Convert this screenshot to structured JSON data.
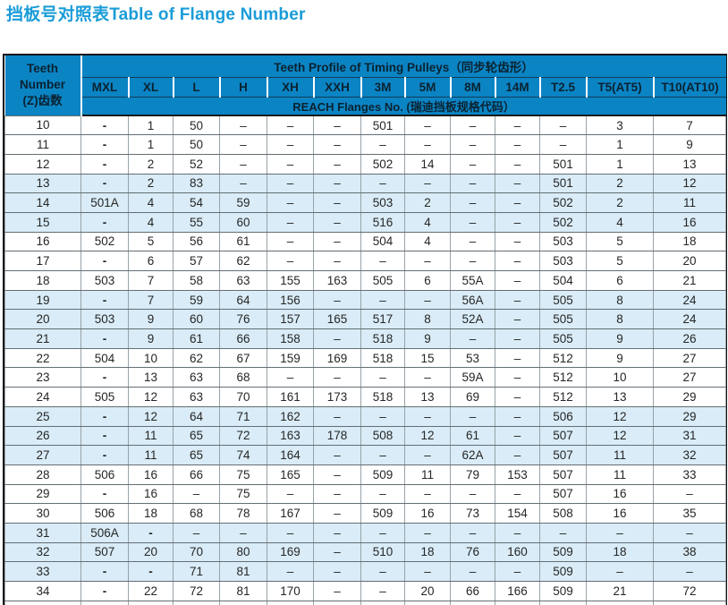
{
  "title": "挡板号对照表Table of Flange Number",
  "colors": {
    "title_accent": "#1a9cd8",
    "header_background": "#0b84c4",
    "row_band": "#d9ecf7"
  },
  "table": {
    "corner_header_lines": [
      "Teeth",
      "Number",
      "(Z)齿数"
    ],
    "group_header": "Teeth Profile of Timing Pulleys（同步轮齿形）",
    "subgroup_header": "REACH Flanges No. (瑞迪挡板规格代码）",
    "columns": [
      "MXL",
      "XL",
      "L",
      "H",
      "XH",
      "XXH",
      "3M",
      "5M",
      "8M",
      "14M",
      "T2.5",
      "T5(AT5)",
      "T10(AT10)"
    ],
    "rows": [
      {
        "teeth": "10",
        "values": [
          "-",
          "1",
          "50",
          "–",
          "–",
          "–",
          "501",
          "–",
          "–",
          "–",
          "–",
          "3",
          "7"
        ]
      },
      {
        "teeth": "11",
        "values": [
          "-",
          "1",
          "50",
          "–",
          "–",
          "–",
          "–",
          "–",
          "–",
          "–",
          "–",
          "1",
          "9"
        ]
      },
      {
        "teeth": "12",
        "values": [
          "-",
          "2",
          "52",
          "–",
          "–",
          "–",
          "502",
          "14",
          "–",
          "–",
          "501",
          "1",
          "13"
        ]
      },
      {
        "teeth": "13",
        "values": [
          "-",
          "2",
          "83",
          "–",
          "–",
          "–",
          "–",
          "–",
          "–",
          "–",
          "501",
          "2",
          "12"
        ]
      },
      {
        "teeth": "14",
        "values": [
          "501A",
          "4",
          "54",
          "59",
          "–",
          "–",
          "503",
          "2",
          "–",
          "–",
          "502",
          "2",
          "11"
        ]
      },
      {
        "teeth": "15",
        "values": [
          "-",
          "4",
          "55",
          "60",
          "–",
          "–",
          "516",
          "4",
          "–",
          "–",
          "502",
          "4",
          "16"
        ]
      },
      {
        "teeth": "16",
        "values": [
          "502",
          "5",
          "56",
          "61",
          "–",
          "–",
          "504",
          "4",
          "–",
          "–",
          "503",
          "5",
          "18"
        ]
      },
      {
        "teeth": "17",
        "values": [
          "-",
          "6",
          "57",
          "62",
          "–",
          "–",
          "–",
          "–",
          "–",
          "–",
          "503",
          "5",
          "20"
        ]
      },
      {
        "teeth": "18",
        "values": [
          "503",
          "7",
          "58",
          "63",
          "155",
          "163",
          "505",
          "6",
          "55A",
          "–",
          "504",
          "6",
          "21"
        ]
      },
      {
        "teeth": "19",
        "values": [
          "-",
          "7",
          "59",
          "64",
          "156",
          "–",
          "–",
          "–",
          "56A",
          "–",
          "505",
          "8",
          "24"
        ]
      },
      {
        "teeth": "20",
        "values": [
          "503",
          "9",
          "60",
          "76",
          "157",
          "165",
          "517",
          "8",
          "52A",
          "–",
          "505",
          "8",
          "24"
        ]
      },
      {
        "teeth": "21",
        "values": [
          "-",
          "9",
          "61",
          "66",
          "158",
          "–",
          "518",
          "9",
          "–",
          "–",
          "505",
          "9",
          "26"
        ]
      },
      {
        "teeth": "22",
        "values": [
          "504",
          "10",
          "62",
          "67",
          "159",
          "169",
          "518",
          "15",
          "53",
          "–",
          "512",
          "9",
          "27"
        ]
      },
      {
        "teeth": "23",
        "values": [
          "-",
          "13",
          "63",
          "68",
          "–",
          "–",
          "–",
          "–",
          "59A",
          "–",
          "512",
          "10",
          "27"
        ]
      },
      {
        "teeth": "24",
        "values": [
          "505",
          "12",
          "63",
          "70",
          "161",
          "173",
          "518",
          "13",
          "69",
          "–",
          "512",
          "13",
          "29"
        ]
      },
      {
        "teeth": "25",
        "values": [
          "-",
          "12",
          "64",
          "71",
          "162",
          "–",
          "–",
          "–",
          "–",
          "–",
          "506",
          "12",
          "29"
        ]
      },
      {
        "teeth": "26",
        "values": [
          "-",
          "11",
          "65",
          "72",
          "163",
          "178",
          "508",
          "12",
          "61",
          "–",
          "507",
          "12",
          "31"
        ]
      },
      {
        "teeth": "27",
        "values": [
          "-",
          "11",
          "65",
          "74",
          "164",
          "–",
          "–",
          "–",
          "62A",
          "–",
          "507",
          "11",
          "32"
        ]
      },
      {
        "teeth": "28",
        "values": [
          "506",
          "16",
          "66",
          "75",
          "165",
          "–",
          "509",
          "11",
          "79",
          "153",
          "507",
          "11",
          "33"
        ]
      },
      {
        "teeth": "29",
        "values": [
          "-",
          "16",
          "–",
          "75",
          "–",
          "–",
          "–",
          "–",
          "–",
          "–",
          "507",
          "16",
          "–"
        ]
      },
      {
        "teeth": "30",
        "values": [
          "506",
          "18",
          "68",
          "78",
          "167",
          "–",
          "509",
          "16",
          "73",
          "154",
          "508",
          "16",
          "35"
        ]
      },
      {
        "teeth": "31",
        "values": [
          "506A",
          "-",
          "–",
          "–",
          "–",
          "–",
          "–",
          "–",
          "–",
          "–",
          "–",
          "–",
          "–"
        ]
      },
      {
        "teeth": "32",
        "values": [
          "507",
          "20",
          "70",
          "80",
          "169",
          "–",
          "510",
          "18",
          "76",
          "160",
          "509",
          "18",
          "38"
        ]
      },
      {
        "teeth": "33",
        "values": [
          "-",
          "-",
          "71",
          "81",
          "–",
          "–",
          "–",
          "–",
          "–",
          "–",
          "509",
          "–",
          "–"
        ]
      },
      {
        "teeth": "34",
        "values": [
          "-",
          "22",
          "72",
          "81",
          "170",
          "–",
          "–",
          "20",
          "66",
          "166",
          "509",
          "21",
          "72"
        ]
      }
    ]
  }
}
